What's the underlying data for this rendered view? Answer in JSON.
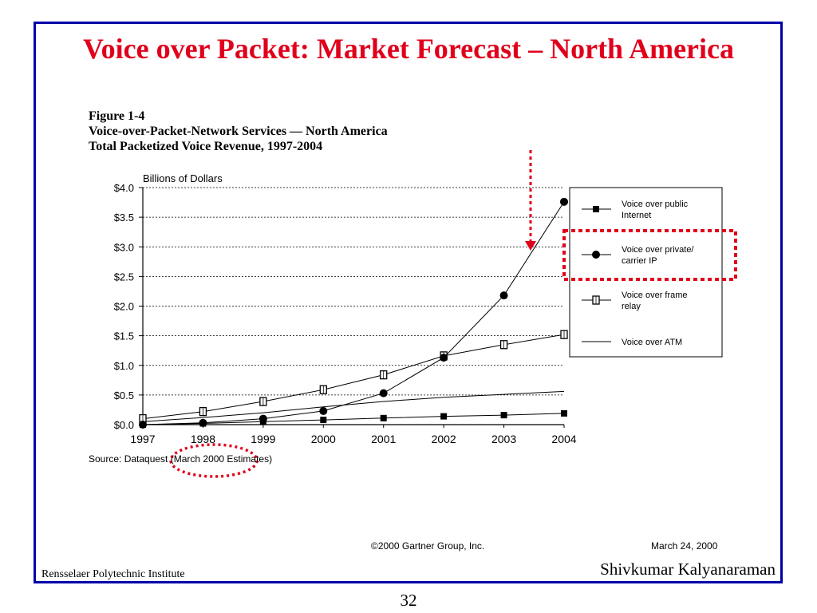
{
  "slide": {
    "title": "Voice over Packet: Market Forecast – North America",
    "footer_left": "Rensselaer Polytechnic Institute",
    "footer_right": "Shivkumar Kalyanaraman",
    "page_number": "32"
  },
  "figure": {
    "label": "Figure 1-4",
    "line2": "Voice-over-Packet-Network Services — North America",
    "line3": "Total Packetized Voice Revenue, 1997-2004",
    "source": "Source: Dataquest (March 2000 Estimates)",
    "copyright": "©2000 Gartner Group, Inc.",
    "date": "March 24, 2000"
  },
  "chart_data": {
    "type": "line",
    "ylabel": "Billions of Dollars",
    "x": [
      "1997",
      "1998",
      "1999",
      "2000",
      "2001",
      "2002",
      "2003",
      "2004"
    ],
    "ylim": [
      0,
      4.0
    ],
    "yticks": [
      "$0.0",
      "$0.5",
      "$1.0",
      "$1.5",
      "$2.0",
      "$2.5",
      "$3.0",
      "$3.5",
      "$4.0"
    ],
    "grid": "horizontal dotted",
    "legend_position": "right",
    "series": [
      {
        "name": "Voice over public Internet",
        "legend_lines": [
          "Voice over public",
          "Internet"
        ],
        "marker": "square-filled",
        "values": [
          0.0,
          0.02,
          0.05,
          0.08,
          0.11,
          0.14,
          0.16,
          0.19
        ]
      },
      {
        "name": "Voice over private/ carrier IP",
        "legend_lines": [
          "Voice over private/",
          "carrier IP"
        ],
        "marker": "circle-filled",
        "values": [
          0.0,
          0.03,
          0.1,
          0.23,
          0.53,
          1.13,
          2.18,
          3.76
        ]
      },
      {
        "name": "Voice over frame relay",
        "legend_lines": [
          "Voice over frame",
          "relay"
        ],
        "marker": "square-open",
        "values": [
          0.1,
          0.22,
          0.39,
          0.59,
          0.84,
          1.16,
          1.35,
          1.52
        ]
      },
      {
        "name": "Voice over ATM",
        "legend_lines": [
          "Voice over ATM"
        ],
        "marker": "none",
        "values": [
          0.05,
          0.12,
          0.2,
          0.3,
          0.39,
          0.46,
          0.51,
          0.56
        ]
      }
    ],
    "annotation": "Voice over private/ carrier IP highlighted",
    "highlight_color": "#e0001b"
  }
}
